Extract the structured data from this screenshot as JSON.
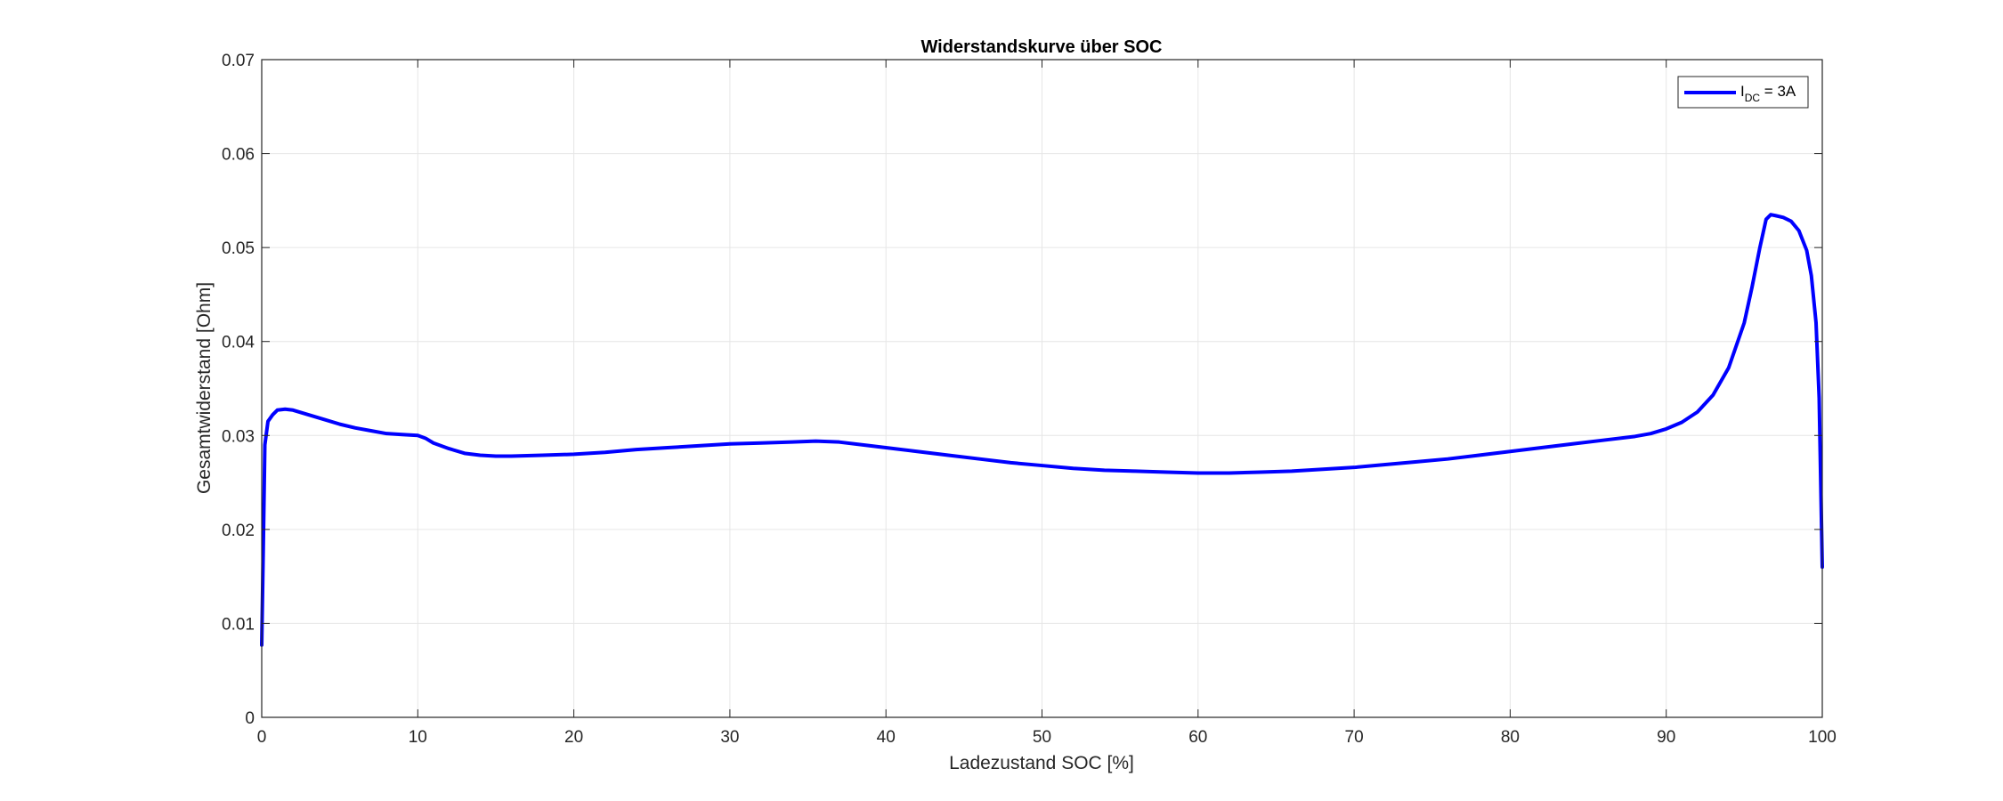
{
  "chart_data": {
    "type": "line",
    "title": "Widerstandskurve über SOC",
    "xlabel": "Ladezustand SOC [%]",
    "ylabel": "Gesamtwiderstand [Ohm]",
    "xlim": [
      0,
      100
    ],
    "ylim": [
      0,
      0.07
    ],
    "xticks": [
      0,
      10,
      20,
      30,
      40,
      50,
      60,
      70,
      80,
      90,
      100
    ],
    "xtick_labels": [
      "0",
      "10",
      "20",
      "30",
      "40",
      "50",
      "60",
      "70",
      "80",
      "90",
      "100"
    ],
    "yticks": [
      0,
      0.01,
      0.02,
      0.03,
      0.04,
      0.05,
      0.06,
      0.07
    ],
    "ytick_labels": [
      "0",
      "0.01",
      "0.02",
      "0.03",
      "0.04",
      "0.05",
      "0.06",
      "0.07"
    ],
    "grid": true,
    "legend_position": "top-right",
    "legend": {
      "main": "I",
      "subscript": "DC",
      "suffix": " = 3A"
    },
    "colors": {
      "series": "#0000ff",
      "grid": "#e6e6e6",
      "axis": "#262626"
    },
    "series": [
      {
        "name": "I_DC = 3A",
        "x": [
          0,
          0.1,
          0.2,
          0.4,
          0.7,
          1,
          1.5,
          2,
          3,
          4,
          5,
          6,
          7,
          8,
          9,
          10,
          10.5,
          11,
          12,
          13,
          14,
          15,
          16,
          18,
          20,
          22,
          24,
          26,
          28,
          30,
          32,
          34,
          35.5,
          37,
          39,
          40,
          42,
          44,
          46,
          48,
          50,
          52,
          54,
          56,
          58,
          60,
          62,
          64,
          66,
          68,
          70,
          72,
          74,
          76,
          78,
          80,
          82,
          84,
          86,
          88,
          89,
          90,
          91,
          92,
          93,
          94,
          95,
          95.5,
          96,
          96.4,
          96.7,
          97,
          97.5,
          98,
          98.5,
          99,
          99.3,
          99.6,
          99.8,
          99.9,
          100
        ],
        "y": [
          0.0077,
          0.018,
          0.029,
          0.0315,
          0.0322,
          0.0327,
          0.0328,
          0.0327,
          0.0322,
          0.0317,
          0.0312,
          0.0308,
          0.0305,
          0.0302,
          0.0301,
          0.03,
          0.0297,
          0.0292,
          0.0286,
          0.0281,
          0.0279,
          0.0278,
          0.0278,
          0.0279,
          0.028,
          0.0282,
          0.0285,
          0.0287,
          0.0289,
          0.0291,
          0.0292,
          0.0293,
          0.0294,
          0.0293,
          0.0289,
          0.0287,
          0.0283,
          0.0279,
          0.0275,
          0.0271,
          0.0268,
          0.0265,
          0.0263,
          0.0262,
          0.0261,
          0.026,
          0.026,
          0.0261,
          0.0262,
          0.0264,
          0.0266,
          0.0269,
          0.0272,
          0.0275,
          0.0279,
          0.0283,
          0.0287,
          0.0291,
          0.0295,
          0.0299,
          0.0302,
          0.0307,
          0.0314,
          0.0325,
          0.0343,
          0.0372,
          0.042,
          0.0458,
          0.05,
          0.053,
          0.0535,
          0.0534,
          0.0532,
          0.0528,
          0.0518,
          0.0497,
          0.047,
          0.042,
          0.034,
          0.025,
          0.016
        ]
      }
    ]
  }
}
